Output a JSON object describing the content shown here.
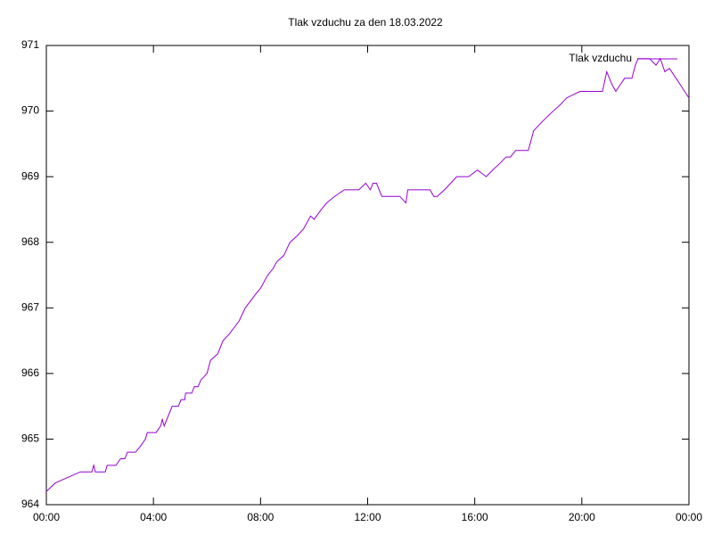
{
  "chart_data": {
    "type": "line",
    "title": "Tlak vzduchu za den 18.03.2022",
    "x": [
      0,
      0.33,
      1.27,
      1.7,
      1.77,
      1.83,
      2.2,
      2.27,
      2.6,
      2.77,
      2.93,
      3.03,
      3.33,
      3.53,
      3.7,
      3.77,
      4.1,
      4.27,
      4.33,
      4.4,
      4.6,
      4.7,
      4.93,
      5.03,
      5.17,
      5.2,
      5.43,
      5.53,
      5.67,
      5.77,
      6.0,
      6.13,
      6.4,
      6.6,
      6.83,
      7.2,
      7.43,
      7.8,
      8.0,
      8.27,
      8.47,
      8.6,
      8.87,
      9.1,
      9.37,
      9.6,
      9.87,
      10.0,
      10.27,
      10.47,
      10.77,
      11.13,
      11.67,
      11.93,
      12.1,
      12.2,
      12.33,
      12.53,
      13.2,
      13.43,
      13.5,
      14.33,
      14.47,
      14.6,
      14.87,
      15.1,
      15.33,
      15.77,
      16.1,
      16.43,
      16.67,
      16.93,
      17.17,
      17.33,
      17.53,
      18.0,
      18.2,
      18.43,
      18.67,
      18.93,
      19.2,
      19.43,
      19.93,
      20.77,
      20.93,
      21.13,
      21.27,
      21.43,
      21.6,
      21.87,
      22.0,
      22.1,
      22.53,
      22.77,
      22.93,
      23.1,
      23.27,
      23.6,
      24.0
    ],
    "series": [
      {
        "name": "Tlak vzduchu",
        "color": "#9400d3",
        "values": [
          964.2,
          964.33,
          964.5,
          964.5,
          964.6,
          964.5,
          964.5,
          964.6,
          964.6,
          964.7,
          964.7,
          964.8,
          964.8,
          964.9,
          965.0,
          965.1,
          965.1,
          965.2,
          965.3,
          965.2,
          965.4,
          965.5,
          965.5,
          965.6,
          965.6,
          965.7,
          965.7,
          965.8,
          965.8,
          965.9,
          966.0,
          966.2,
          966.3,
          966.5,
          966.6,
          966.8,
          967.0,
          967.2,
          967.3,
          967.5,
          967.6,
          967.7,
          967.8,
          968.0,
          968.1,
          968.2,
          968.4,
          968.35,
          968.5,
          968.6,
          968.7,
          968.8,
          968.8,
          968.9,
          968.8,
          968.9,
          968.9,
          968.7,
          968.7,
          968.6,
          968.8,
          968.8,
          968.7,
          968.7,
          968.8,
          968.9,
          969.0,
          969.0,
          969.1,
          969.0,
          969.1,
          969.2,
          969.3,
          969.3,
          969.4,
          969.4,
          969.7,
          969.8,
          969.9,
          970.0,
          970.1,
          970.2,
          970.3,
          970.3,
          970.6,
          970.4,
          970.3,
          970.4,
          970.5,
          970.5,
          970.7,
          970.8,
          970.8,
          970.7,
          970.8,
          970.6,
          970.65,
          970.45,
          970.2
        ]
      }
    ],
    "xlim": [
      0,
      24
    ],
    "xticks": [
      {
        "value": 0,
        "label": "00:00"
      },
      {
        "value": 4,
        "label": "04:00"
      },
      {
        "value": 8,
        "label": "08:00"
      },
      {
        "value": 12,
        "label": "12:00"
      },
      {
        "value": 16,
        "label": "16:00"
      },
      {
        "value": 20,
        "label": "20:00"
      },
      {
        "value": 24,
        "label": "00:00"
      }
    ],
    "ylim": [
      964,
      971
    ],
    "yticks": [
      964,
      965,
      966,
      967,
      968,
      969,
      970,
      971
    ],
    "grid": false,
    "legend": "top-right"
  }
}
